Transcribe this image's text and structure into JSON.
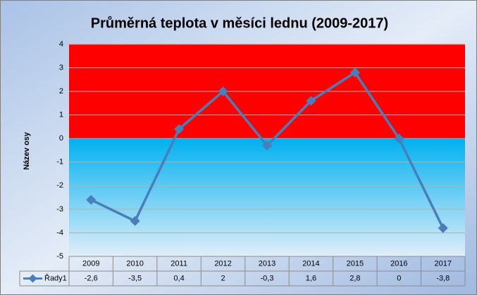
{
  "chart_data": {
    "type": "line",
    "title": "Průměrná teplota v měsíci lednu (2009-2017)",
    "y_label": "Název osy",
    "categories": [
      "2009",
      "2010",
      "2011",
      "2012",
      "2013",
      "2014",
      "2015",
      "2016",
      "2017"
    ],
    "series": [
      {
        "name": "Řady1",
        "color": "#4a7ebb",
        "values": [
          -2.6,
          -3.5,
          0.4,
          2,
          -0.3,
          1.6,
          2.8,
          0,
          -3.8
        ],
        "value_labels": [
          "-2,6",
          "-3,5",
          "0,4",
          "2",
          "-0,3",
          "1,6",
          "2,8",
          "0",
          "-3,8"
        ]
      }
    ],
    "ylim": [
      -5,
      4
    ],
    "yticks": [
      4,
      3,
      2,
      1,
      0,
      -1,
      -2,
      -3,
      -4,
      -5
    ],
    "grid": true
  }
}
